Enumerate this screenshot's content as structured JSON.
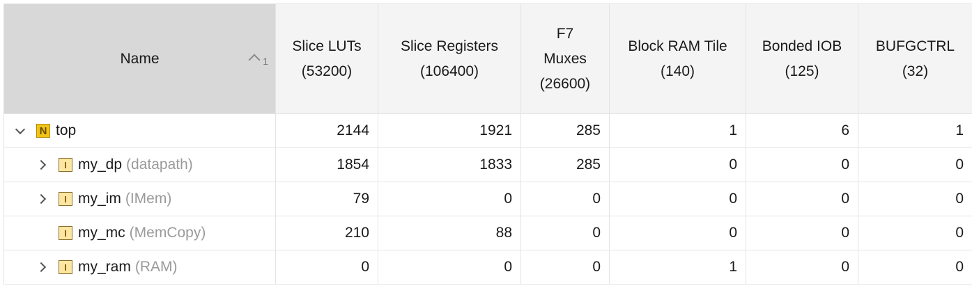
{
  "table": {
    "columns": [
      {
        "lines": [
          "Name"
        ]
      },
      {
        "lines": [
          "Slice LUTs",
          "(53200)"
        ]
      },
      {
        "lines": [
          "Slice Registers",
          "(106400)"
        ]
      },
      {
        "lines": [
          "F7",
          "Muxes",
          "(26600)"
        ]
      },
      {
        "lines": [
          "Block RAM Tile",
          "(140)"
        ]
      },
      {
        "lines": [
          "Bonded IOB",
          "(125)"
        ]
      },
      {
        "lines": [
          "BUFGCTRL",
          "(32)"
        ]
      }
    ],
    "sort": {
      "column": "Name",
      "direction": "ascending",
      "priority": "1"
    },
    "rows": [
      {
        "level": 0,
        "expander": "expanded",
        "icon": "top-module-icon",
        "instance": "top",
        "module": "",
        "values": [
          "2144",
          "1921",
          "285",
          "1",
          "6",
          "1"
        ]
      },
      {
        "level": 1,
        "expander": "collapsed",
        "icon": "instance-icon",
        "instance": "my_dp",
        "module": "(datapath)",
        "values": [
          "1854",
          "1833",
          "285",
          "0",
          "0",
          "0"
        ]
      },
      {
        "level": 1,
        "expander": "collapsed",
        "icon": "instance-icon",
        "instance": "my_im",
        "module": "(IMem)",
        "values": [
          "79",
          "0",
          "0",
          "0",
          "0",
          "0"
        ]
      },
      {
        "level": 1,
        "expander": "none",
        "icon": "instance-icon",
        "instance": "my_mc",
        "module": "(MemCopy)",
        "values": [
          "210",
          "88",
          "0",
          "0",
          "0",
          "0"
        ]
      },
      {
        "level": 1,
        "expander": "collapsed",
        "icon": "instance-icon",
        "instance": "my_ram",
        "module": "(RAM)",
        "values": [
          "0",
          "0",
          "0",
          "1",
          "0",
          "0"
        ]
      }
    ],
    "icon_glyphs": {
      "top": "N",
      "instance": "I"
    }
  }
}
